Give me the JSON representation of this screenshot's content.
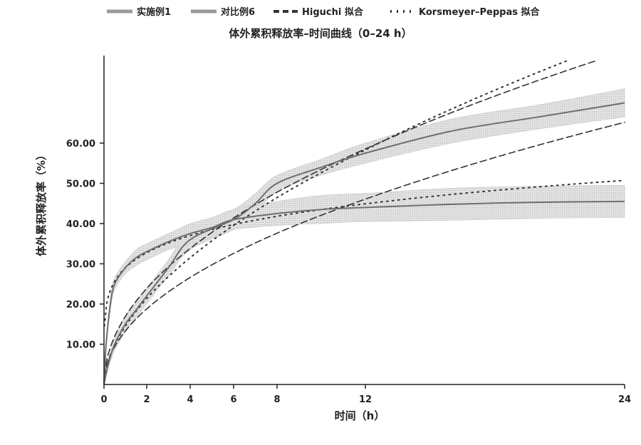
{
  "chart_data": {
    "type": "line",
    "title": "体外累积释放率–时间曲线（0–24 h）",
    "xlabel": "时间（h）",
    "ylabel": "体外累积释放率（%）",
    "xlim": [
      0,
      24
    ],
    "ylim": [
      0,
      80
    ],
    "x_ticks": [
      0,
      2,
      4,
      6,
      8,
      12,
      24
    ],
    "x_tick_labels": [
      "0",
      "2",
      "4",
      "6",
      "8",
      "12",
      "24"
    ],
    "y_ticks": [
      10,
      20,
      30,
      40,
      50,
      60
    ],
    "y_tick_labels": [
      "10.00",
      "20.00",
      "30.00",
      "40.00",
      "50.00",
      "60.00"
    ],
    "grid": false,
    "legend_position": "top",
    "legend": [
      "实施例1",
      "对比例6",
      "Higuchi 拟合",
      "Korsmeyer–Peppas 拟合"
    ],
    "series": [
      {
        "name": "实施例1",
        "style": "solid",
        "x": [
          0,
          0.2,
          0.5,
          1,
          1.5,
          2,
          3,
          4,
          6,
          7,
          8,
          10,
          12,
          16,
          20,
          24
        ],
        "y": [
          0,
          5,
          10,
          15,
          18.5,
          22,
          29,
          36,
          41,
          45,
          50,
          54,
          57.5,
          63,
          66.5,
          70
        ],
        "band": [
          0,
          1,
          1.5,
          2,
          2,
          2,
          2,
          2.5,
          2.5,
          2.5,
          2,
          2,
          2.5,
          3,
          3,
          3.5
        ]
      },
      {
        "name": "对比例6",
        "style": "solid",
        "x": [
          0,
          0.1,
          0.3,
          0.5,
          1,
          1.5,
          2,
          3,
          4,
          5,
          6,
          8,
          10,
          12,
          16,
          20,
          24
        ],
        "y": [
          0,
          10,
          20,
          25,
          29,
          31.5,
          33,
          35.5,
          37.5,
          39,
          41,
          42.5,
          43.5,
          44,
          44.8,
          45.3,
          45.5
        ],
        "band": [
          0,
          1,
          1.5,
          1.5,
          1.5,
          2,
          2,
          2,
          2.5,
          2.5,
          2.5,
          3,
          3.5,
          3.5,
          4,
          4,
          4
        ]
      }
    ],
    "fits": [
      {
        "name": "Higuchi 拟合 (实施例1)",
        "style": "dashed",
        "k": 16.9
      },
      {
        "name": "Higuchi 拟合 (对比例6)",
        "style": "dashed",
        "k": 13.3
      },
      {
        "name": "Korsmeyer–Peppas 拟合 (实施例1)",
        "style": "dotted",
        "k": 14.5,
        "n": 0.56
      },
      {
        "name": "Korsmeyer–Peppas 拟合 (对比例6)",
        "style": "dotted",
        "k": 29,
        "n": 0.176
      }
    ]
  }
}
